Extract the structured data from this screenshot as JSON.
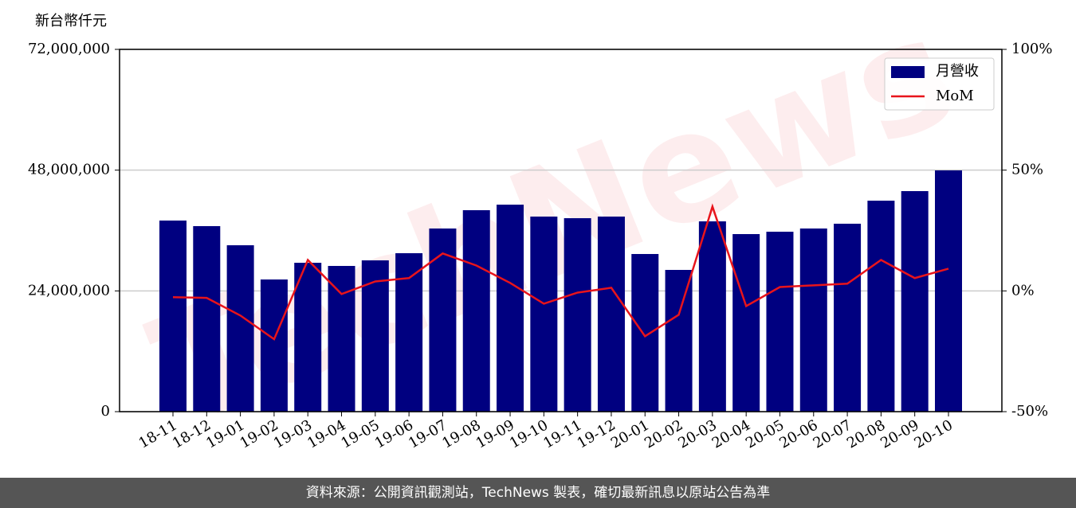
{
  "chart_data": {
    "type": "bar_line",
    "y_label": "新台幣仟元",
    "watermark": "TechNews",
    "categories": [
      "18-11",
      "18-12",
      "19-01",
      "19-02",
      "19-03",
      "19-04",
      "19-05",
      "19-06",
      "19-07",
      "19-08",
      "19-09",
      "19-10",
      "19-11",
      "19-12",
      "20-01",
      "20-02",
      "20-03",
      "20-04",
      "20-05",
      "20-06",
      "20-07",
      "20-08",
      "20-09",
      "20-10"
    ],
    "series": [
      {
        "name": "月營收",
        "type": "bar",
        "color": "#000080",
        "values": [
          37980000,
          36870000,
          33070000,
          26270000,
          29590000,
          28960000,
          30070000,
          31490000,
          36400000,
          40040000,
          41140000,
          38770000,
          38450000,
          38770000,
          31330000,
          28170000,
          37820000,
          35290000,
          35760000,
          36400000,
          37350000,
          41930000,
          43830000,
          47950000
        ]
      },
      {
        "name": "MoM",
        "type": "line",
        "color": "#e8141b",
        "axis": "y2",
        "values": [
          -2.6,
          -2.9,
          -10.2,
          -20.0,
          12.8,
          -1.3,
          3.9,
          5.3,
          15.5,
          10.5,
          3.3,
          -5.3,
          -0.7,
          1.3,
          -18.8,
          -9.9,
          34.9,
          -6.3,
          1.6,
          2.3,
          3.0,
          12.8,
          5.3,
          9.2
        ]
      }
    ],
    "ylim": [
      0,
      72000000
    ],
    "yticks": [
      0,
      {
        "value": 24000000,
        "label": "24,000,000"
      },
      {
        "value": 48000000,
        "label": "48,000,000"
      },
      {
        "value": 72000000,
        "label": "72,000,000"
      }
    ],
    "y2lim": [
      -50,
      100
    ],
    "y2ticks": [
      {
        "value": -50,
        "label": "-50%"
      },
      {
        "value": 0,
        "label": "0%"
      },
      {
        "value": 50,
        "label": "50%"
      },
      {
        "value": 100,
        "label": "100%"
      }
    ],
    "grid": true,
    "legend": "upper right"
  },
  "footer": "資料來源：公開資訊觀測站，TechNews 製表，確切最新訊息以原站公告為準"
}
